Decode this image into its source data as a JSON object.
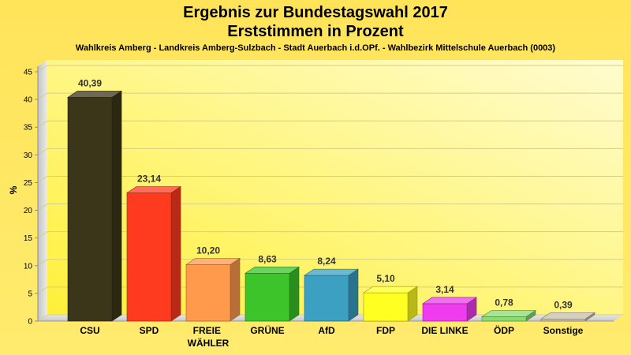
{
  "chart_data": {
    "type": "bar",
    "title": "Ergebnis zur Bundestagswahl 2017",
    "title_line2": "Erststimmen in Prozent",
    "subtitle": "Wahlkreis Amberg - Landkreis Amberg-Sulzbach - Stadt Auerbach i.d.OPf. - Wahlbezirk Mittelschule Auerbach (0003)",
    "ylabel": "%",
    "ylim": [
      0,
      45
    ],
    "y_ticks": [
      0,
      5,
      10,
      15,
      20,
      25,
      30,
      35,
      40,
      45
    ],
    "grid": true,
    "categories": [
      "CSU",
      "SPD",
      "FREIE WÄHLER",
      "GRÜNE",
      "AfD",
      "FDP",
      "DIE LINKE",
      "ÖDP",
      "Sonstige"
    ],
    "values": [
      40.39,
      23.14,
      10.2,
      8.63,
      8.24,
      5.1,
      3.14,
      0.78,
      0.39
    ],
    "value_labels": [
      "40,39",
      "23,14",
      "10,20",
      "8,63",
      "8,24",
      "5,10",
      "3,14",
      "0,78",
      "0,39"
    ],
    "colors": [
      "#3b3619",
      "#ff3b1f",
      "#ff9a4d",
      "#3cc42a",
      "#3ba0c2",
      "#ffff22",
      "#ee3cee",
      "#88dc70",
      "#c6bfa8"
    ]
  }
}
